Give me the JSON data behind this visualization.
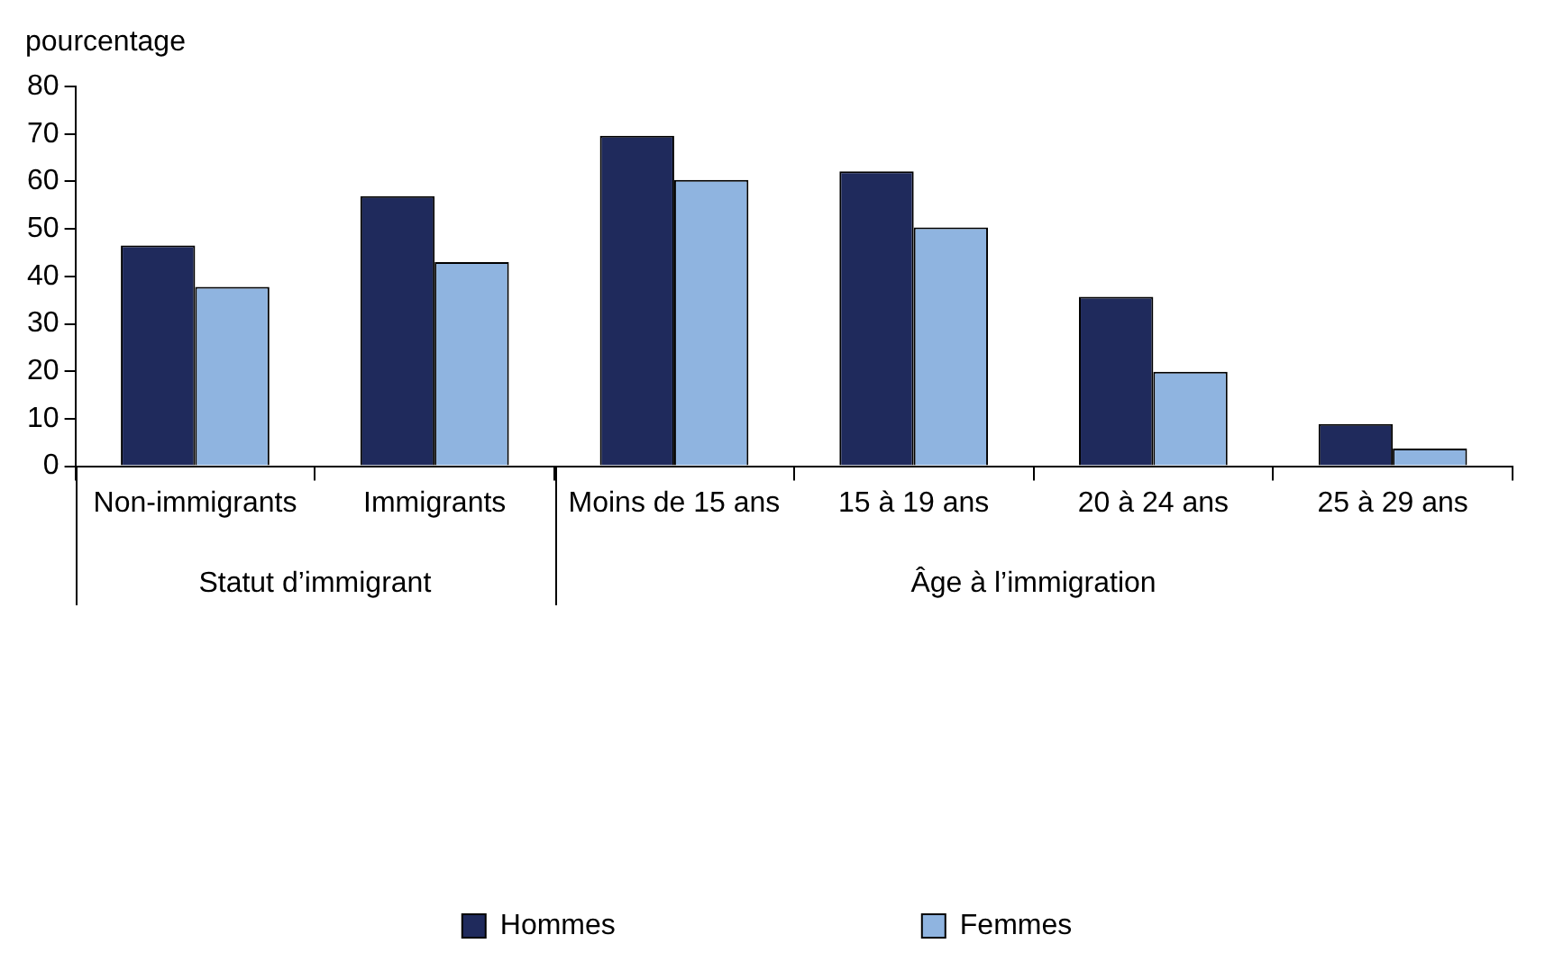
{
  "chart_data": {
    "type": "bar",
    "ylabel": "pourcentage",
    "categories": [
      "Non-immigrants",
      "Immigrants",
      "Moins de 15 ans",
      "15 à 19 ans",
      "20 à 24 ans",
      "25 à 29 ans"
    ],
    "series": [
      {
        "name": "Hommes",
        "color": "#1f2a5c",
        "values": [
          46.5,
          56.9,
          69.6,
          62.1,
          35.7,
          8.9
        ]
      },
      {
        "name": "Femmes",
        "color": "#8fb4e0",
        "values": [
          37.8,
          43.0,
          60.3,
          50.3,
          19.9,
          3.7
        ]
      }
    ],
    "annotations": [
      "Statut d’immigrant",
      "Âge à l’immigration"
    ],
    "ylim": [
      0,
      80
    ],
    "yticks": [
      0,
      10,
      20,
      30,
      40,
      50,
      60,
      70,
      80
    ],
    "grid": false,
    "legend": "bottom"
  }
}
